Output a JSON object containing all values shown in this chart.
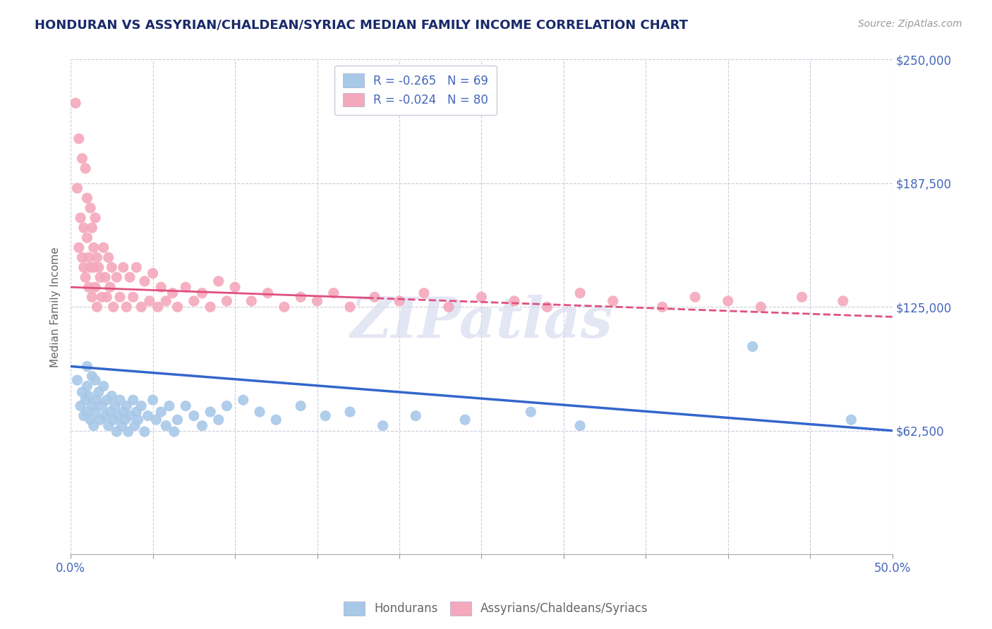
{
  "title": "HONDURAN VS ASSYRIAN/CHALDEAN/SYRIAC MEDIAN FAMILY INCOME CORRELATION CHART",
  "source": "Source: ZipAtlas.com",
  "ylabel": "Median Family Income",
  "xlim": [
    0.0,
    0.5
  ],
  "ylim": [
    0,
    250000
  ],
  "yticks": [
    0,
    62500,
    125000,
    187500,
    250000
  ],
  "ytick_labels": [
    "",
    "$62,500",
    "$125,000",
    "$187,500",
    "$250,000"
  ],
  "xtick_positions": [
    0.0,
    0.05,
    0.1,
    0.15,
    0.2,
    0.25,
    0.3,
    0.35,
    0.4,
    0.45,
    0.5
  ],
  "xtick_labels_show": {
    "0.0": "0.0%",
    "0.5": "50.0%"
  },
  "blue_R": -0.265,
  "blue_N": 69,
  "pink_R": -0.024,
  "pink_N": 80,
  "legend_label_blue": "Hondurans",
  "legend_label_pink": "Assyrians/Chaldeans/Syriacs",
  "watermark": "ZIPatlas",
  "blue_color": "#a8c8e8",
  "pink_color": "#f4a8bc",
  "blue_line_color": "#3366cc",
  "pink_line_color": "#e05080",
  "title_color": "#1a2a6a",
  "axis_label_color": "#666666",
  "tick_color": "#4466bb",
  "grid_color": "#ccccdd",
  "background_color": "#ffffff",
  "blue_scatter_x": [
    0.004,
    0.006,
    0.007,
    0.008,
    0.009,
    0.01,
    0.01,
    0.01,
    0.011,
    0.012,
    0.013,
    0.013,
    0.014,
    0.015,
    0.015,
    0.016,
    0.017,
    0.018,
    0.019,
    0.02,
    0.021,
    0.022,
    0.023,
    0.024,
    0.025,
    0.026,
    0.027,
    0.028,
    0.029,
    0.03,
    0.031,
    0.032,
    0.033,
    0.034,
    0.035,
    0.036,
    0.038,
    0.039,
    0.04,
    0.041,
    0.043,
    0.045,
    0.047,
    0.05,
    0.052,
    0.055,
    0.058,
    0.06,
    0.063,
    0.065,
    0.07,
    0.075,
    0.08,
    0.085,
    0.09,
    0.095,
    0.105,
    0.115,
    0.125,
    0.14,
    0.155,
    0.17,
    0.19,
    0.21,
    0.24,
    0.28,
    0.31,
    0.415,
    0.475
  ],
  "blue_scatter_y": [
    88000,
    75000,
    82000,
    70000,
    78000,
    95000,
    85000,
    72000,
    80000,
    68000,
    90000,
    75000,
    65000,
    88000,
    72000,
    78000,
    82000,
    68000,
    75000,
    85000,
    70000,
    78000,
    65000,
    72000,
    80000,
    68000,
    75000,
    62000,
    70000,
    78000,
    65000,
    72000,
    68000,
    75000,
    62000,
    70000,
    78000,
    65000,
    72000,
    68000,
    75000,
    62000,
    70000,
    78000,
    68000,
    72000,
    65000,
    75000,
    62000,
    68000,
    75000,
    70000,
    65000,
    72000,
    68000,
    75000,
    78000,
    72000,
    68000,
    75000,
    70000,
    72000,
    65000,
    70000,
    68000,
    72000,
    65000,
    105000,
    68000
  ],
  "pink_scatter_x": [
    0.003,
    0.004,
    0.005,
    0.005,
    0.006,
    0.007,
    0.007,
    0.008,
    0.008,
    0.009,
    0.009,
    0.01,
    0.01,
    0.011,
    0.011,
    0.012,
    0.012,
    0.013,
    0.013,
    0.014,
    0.014,
    0.015,
    0.015,
    0.016,
    0.016,
    0.017,
    0.018,
    0.019,
    0.02,
    0.021,
    0.022,
    0.023,
    0.024,
    0.025,
    0.026,
    0.028,
    0.03,
    0.032,
    0.034,
    0.036,
    0.038,
    0.04,
    0.043,
    0.045,
    0.048,
    0.05,
    0.053,
    0.055,
    0.058,
    0.062,
    0.065,
    0.07,
    0.075,
    0.08,
    0.085,
    0.09,
    0.095,
    0.1,
    0.11,
    0.12,
    0.13,
    0.14,
    0.15,
    0.16,
    0.17,
    0.185,
    0.2,
    0.215,
    0.23,
    0.25,
    0.27,
    0.29,
    0.31,
    0.33,
    0.36,
    0.38,
    0.4,
    0.42,
    0.445,
    0.47
  ],
  "pink_scatter_y": [
    228000,
    185000,
    155000,
    210000,
    170000,
    200000,
    150000,
    145000,
    165000,
    195000,
    140000,
    180000,
    160000,
    150000,
    135000,
    175000,
    145000,
    165000,
    130000,
    155000,
    145000,
    170000,
    135000,
    150000,
    125000,
    145000,
    140000,
    130000,
    155000,
    140000,
    130000,
    150000,
    135000,
    145000,
    125000,
    140000,
    130000,
    145000,
    125000,
    140000,
    130000,
    145000,
    125000,
    138000,
    128000,
    142000,
    125000,
    135000,
    128000,
    132000,
    125000,
    135000,
    128000,
    132000,
    125000,
    138000,
    128000,
    135000,
    128000,
    132000,
    125000,
    130000,
    128000,
    132000,
    125000,
    130000,
    128000,
    132000,
    125000,
    130000,
    128000,
    125000,
    132000,
    128000,
    125000,
    130000,
    128000,
    125000,
    130000,
    128000
  ]
}
